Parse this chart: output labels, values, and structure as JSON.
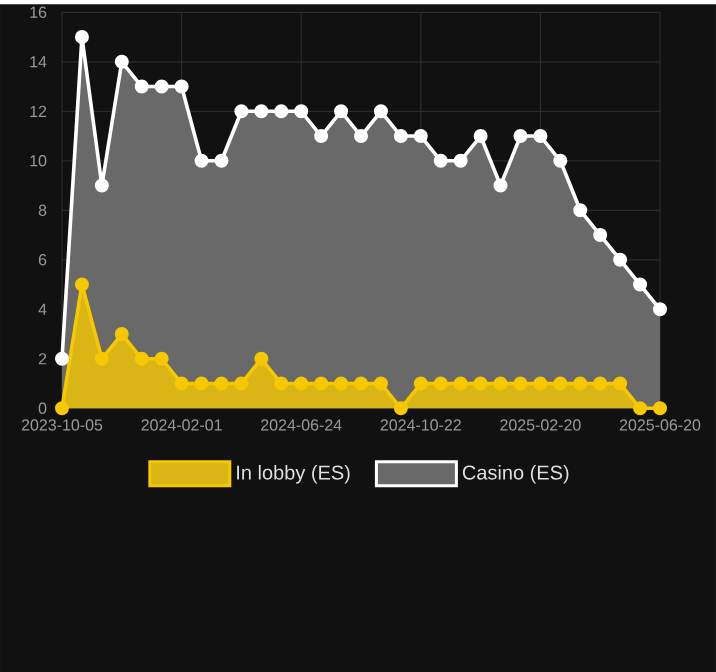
{
  "chart_data": {
    "type": "area",
    "categories": [
      "2023-10-05",
      null,
      null,
      null,
      null,
      null,
      "2024-02-01",
      null,
      null,
      null,
      null,
      null,
      "2024-06-24",
      null,
      null,
      null,
      null,
      null,
      "2024-10-22",
      null,
      null,
      null,
      null,
      null,
      "2025-02-20",
      null,
      null,
      null,
      null,
      null,
      "2025-06-20"
    ],
    "series": [
      {
        "name": "In lobby (ES)",
        "color": "#f5c800",
        "values": [
          0,
          5,
          2,
          3,
          2,
          2,
          1,
          1,
          1,
          1,
          2,
          1,
          1,
          1,
          1,
          1,
          1,
          0,
          1,
          1,
          1,
          1,
          1,
          1,
          1,
          1,
          1,
          1,
          1,
          0,
          0
        ]
      },
      {
        "name": "Casino (ES)",
        "color": "#ffffff",
        "values": [
          2,
          15,
          9,
          14,
          13,
          13,
          13,
          10,
          10,
          12,
          12,
          12,
          12,
          11,
          12,
          11,
          12,
          11,
          11,
          10,
          10,
          11,
          9,
          11,
          11,
          10,
          8,
          7,
          6,
          5,
          4
        ]
      }
    ],
    "ylim": [
      0,
      16
    ],
    "yticks": [
      0,
      2,
      4,
      6,
      8,
      10,
      12,
      14,
      16
    ],
    "grid": true,
    "legend": "bottom",
    "marker": "circle"
  }
}
